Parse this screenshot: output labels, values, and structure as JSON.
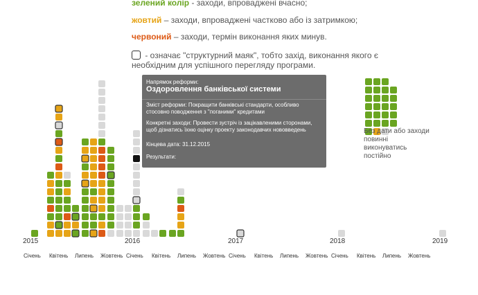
{
  "legend": {
    "green_keyword": "зелений колір",
    "green_text": " - заходи, впроваджені вчасно;",
    "yellow_keyword": "жовтий",
    "yellow_text": " – заходи, впроваджені частково або із затримкою;",
    "red_keyword": "червоний",
    "red_text": " – заходи, термін виконання яких минув.",
    "beacon_text": " - означає \"структурний маяк\", тобто захід, виконання якого є необхідним для успішного перегляду програми."
  },
  "colors": {
    "green": "#6aa521",
    "yellow": "#e6a417",
    "red": "#dd5a16",
    "grey": "#d9d9d9",
    "black": "#111111"
  },
  "timeline": {
    "years": [
      "2015",
      "2016",
      "2017",
      "2018",
      "2019"
    ],
    "months": [
      "Січень",
      "Квітень",
      "Липень",
      "Жовтень",
      "Січень",
      "Квітень",
      "Липень",
      "Жовтень",
      "Січень",
      "Квітень",
      "Липень",
      "Жовтень",
      "Січень",
      "Квітень",
      "Липень",
      "Жовтень"
    ]
  },
  "tooltip": {
    "direction_label": "Напрямок реформи:",
    "direction_value": "Оздоровлення банківської системи",
    "content_label": "Зміст реформи:",
    "content_value": "Покращити банківські стандарти, особливо стосовно поводження з \"поганими\" кредитами",
    "measures_label": "Конкретні заходи:",
    "measures_value": "Провести зустріч із зацікавленими сторонами, щоб дізнатись їхню оцінку проекту законодавчих нововведень",
    "deadline_label": "Кінцева дата:",
    "deadline_value": "31.12.2015",
    "results_label": "Результати:",
    "results_value": ""
  },
  "undated": {
    "caption": "Без дати або заходи повинні виконуватись постійно",
    "rows": [
      "ggg",
      "gggg",
      "gggg",
      "gggg",
      "gggg",
      "gggg",
      "gyx"
    ]
  }
}
